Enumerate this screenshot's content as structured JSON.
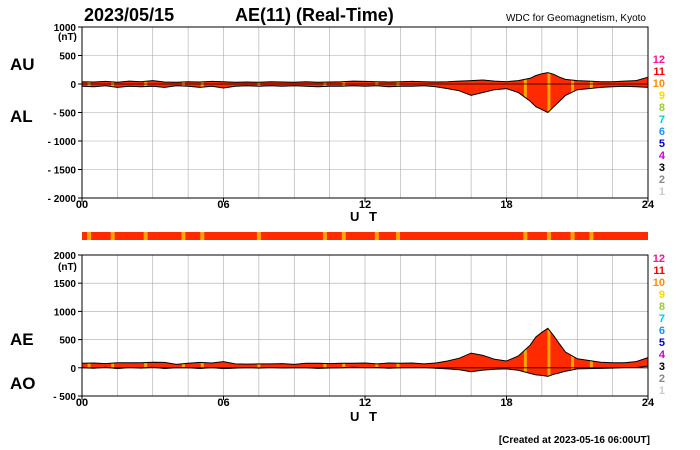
{
  "header": {
    "date": "2023/05/15",
    "title": "AE(11) (Real-Time)",
    "source": "WDC for Geomagnetism, Kyoto"
  },
  "footer": {
    "created": "[Created at 2023-05-16 06:00UT]"
  },
  "colors": {
    "fill_red": "#ff2a00",
    "fill_orange": "#ffa500",
    "fill_yellow": "#ffd700",
    "grid": "#aaaaaa",
    "bar_red": "#ff2a00",
    "bar_marker": "#ffa500"
  },
  "station_legend": [
    {
      "label": "12",
      "color": "#ff1493"
    },
    {
      "label": "11",
      "color": "#ff0000"
    },
    {
      "label": "10",
      "color": "#ff8c00"
    },
    {
      "label": "9",
      "color": "#ffd700"
    },
    {
      "label": "8",
      "color": "#9acd32"
    },
    {
      "label": "7",
      "color": "#00ced1"
    },
    {
      "label": "6",
      "color": "#1e90ff"
    },
    {
      "label": "5",
      "color": "#0000cd"
    },
    {
      "label": "4",
      "color": "#cc00cc"
    },
    {
      "label": "3",
      "color": "#000000"
    },
    {
      "label": "2",
      "color": "#888888"
    },
    {
      "label": "1",
      "color": "#cccccc"
    }
  ],
  "station_count_bar": {
    "default_count": 11,
    "markers_at_hours": [
      0.3,
      1.3,
      2.7,
      4.3,
      5.1,
      7.5,
      10.3,
      11.1,
      12.5,
      13.4,
      18.8,
      19.8,
      20.8,
      21.6
    ]
  },
  "chart_data": [
    {
      "type": "area",
      "name": "AU/AL panel",
      "upper_label": "AU",
      "lower_label": "AL",
      "unit": "(nT)",
      "xlabel": "U T",
      "xlim": [
        0,
        24
      ],
      "ylim": [
        -2000,
        1000
      ],
      "yticks": [
        1000,
        500,
        0,
        -500,
        -1000,
        -1500,
        -2000
      ],
      "ytick_labels": [
        "1000",
        "500",
        "0",
        "- 500",
        "- 1000",
        "- 1500",
        "- 2000"
      ],
      "xticks": [
        0,
        6,
        12,
        18,
        24
      ],
      "xtick_labels": [
        "00",
        "06",
        "12",
        "18",
        "24"
      ],
      "grid": true,
      "x": [
        0,
        0.5,
        1,
        1.5,
        2,
        2.5,
        3,
        3.5,
        4,
        4.5,
        5,
        5.5,
        6,
        6.5,
        7,
        7.5,
        8,
        8.5,
        9,
        9.5,
        10,
        10.5,
        11,
        11.5,
        12,
        12.5,
        13,
        13.5,
        14,
        14.5,
        15,
        15.5,
        16,
        16.5,
        17,
        17.5,
        18,
        18.5,
        19,
        19.25,
        19.5,
        19.75,
        20,
        20.25,
        20.5,
        21,
        21.5,
        22,
        22.5,
        23,
        23.5,
        24
      ],
      "series": [
        {
          "name": "AU",
          "values": [
            40,
            35,
            45,
            30,
            50,
            40,
            60,
            35,
            30,
            40,
            35,
            45,
            40,
            30,
            35,
            30,
            40,
            35,
            30,
            40,
            30,
            35,
            40,
            50,
            45,
            40,
            35,
            40,
            45,
            40,
            35,
            40,
            50,
            60,
            70,
            50,
            40,
            60,
            100,
            150,
            180,
            200,
            170,
            120,
            80,
            60,
            50,
            40,
            40,
            50,
            60,
            120
          ]
        },
        {
          "name": "AL",
          "values": [
            -40,
            -50,
            -30,
            -60,
            -40,
            -50,
            -40,
            -60,
            -30,
            -40,
            -60,
            -40,
            -70,
            -40,
            -30,
            -40,
            -30,
            -40,
            -30,
            -40,
            -50,
            -40,
            -40,
            -30,
            -40,
            -30,
            -50,
            -40,
            -40,
            -30,
            -50,
            -80,
            -120,
            -200,
            -150,
            -100,
            -80,
            -150,
            -300,
            -400,
            -450,
            -500,
            -400,
            -300,
            -200,
            -100,
            -80,
            -60,
            -50,
            -40,
            -50,
            -60
          ]
        }
      ]
    },
    {
      "type": "area",
      "name": "AE/AO panel",
      "upper_label": "AE",
      "lower_label": "AO",
      "unit": "(nT)",
      "xlabel": "U T",
      "xlim": [
        0,
        24
      ],
      "ylim": [
        -500,
        2000
      ],
      "yticks": [
        2000,
        1500,
        1000,
        500,
        0,
        -500
      ],
      "ytick_labels": [
        "2000",
        "1500",
        "1000",
        "500",
        "0",
        "- 500"
      ],
      "xticks": [
        0,
        6,
        12,
        18,
        24
      ],
      "xtick_labels": [
        "00",
        "06",
        "12",
        "18",
        "24"
      ],
      "grid": true,
      "x": [
        0,
        0.5,
        1,
        1.5,
        2,
        2.5,
        3,
        3.5,
        4,
        4.5,
        5,
        5.5,
        6,
        6.5,
        7,
        7.5,
        8,
        8.5,
        9,
        9.5,
        10,
        10.5,
        11,
        11.5,
        12,
        12.5,
        13,
        13.5,
        14,
        14.5,
        15,
        15.5,
        16,
        16.5,
        17,
        17.5,
        18,
        18.5,
        19,
        19.25,
        19.5,
        19.75,
        20,
        20.25,
        20.5,
        21,
        21.5,
        22,
        22.5,
        23,
        23.5,
        24
      ],
      "series": [
        {
          "name": "AE",
          "values": [
            80,
            85,
            75,
            90,
            90,
            90,
            100,
            95,
            60,
            80,
            95,
            85,
            110,
            70,
            65,
            70,
            70,
            75,
            60,
            80,
            80,
            75,
            80,
            80,
            85,
            70,
            85,
            80,
            85,
            70,
            85,
            120,
            170,
            260,
            220,
            150,
            120,
            210,
            400,
            550,
            630,
            700,
            570,
            420,
            280,
            160,
            130,
            100,
            90,
            90,
            110,
            180
          ]
        },
        {
          "name": "AO",
          "values": [
            0,
            -8,
            8,
            -15,
            5,
            -5,
            10,
            -12,
            0,
            0,
            -12,
            3,
            -15,
            -5,
            3,
            -5,
            5,
            -3,
            0,
            0,
            -10,
            -3,
            0,
            10,
            3,
            5,
            -8,
            0,
            3,
            5,
            -8,
            -20,
            -35,
            -70,
            -40,
            -25,
            -20,
            -45,
            -100,
            -125,
            -135,
            -150,
            -115,
            -90,
            -60,
            -20,
            -15,
            -10,
            -5,
            5,
            5,
            30
          ]
        }
      ]
    }
  ]
}
